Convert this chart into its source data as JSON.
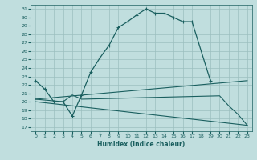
{
  "xlabel": "Humidex (Indice chaleur)",
  "bg_color": "#c0dede",
  "grid_color": "#9bbfbf",
  "line_color": "#1a5f5f",
  "xlim": [
    -0.5,
    23.5
  ],
  "ylim": [
    16.5,
    31.5
  ],
  "xticks": [
    0,
    1,
    2,
    3,
    4,
    5,
    6,
    7,
    8,
    9,
    10,
    11,
    12,
    13,
    14,
    15,
    16,
    17,
    18,
    19,
    20,
    21,
    22,
    23
  ],
  "yticks": [
    17,
    18,
    19,
    20,
    21,
    22,
    23,
    24,
    25,
    26,
    27,
    28,
    29,
    30,
    31
  ],
  "curve1_x": [
    0,
    1,
    2,
    3,
    4,
    5,
    6,
    7,
    8,
    9,
    10,
    11,
    12,
    13,
    14,
    15,
    16,
    17,
    19
  ],
  "curve1_y": [
    22.5,
    21.5,
    20.0,
    20.0,
    18.3,
    20.8,
    23.5,
    25.2,
    26.7,
    28.8,
    29.5,
    30.3,
    31.0,
    30.5,
    30.5,
    30.0,
    29.5,
    29.5,
    22.5
  ],
  "curve2_x": [
    0,
    23
  ],
  "curve2_y": [
    20.3,
    22.5
  ],
  "curve3_x": [
    0,
    23
  ],
  "curve3_y": [
    20.0,
    17.2
  ],
  "curve4_x": [
    0,
    3,
    4,
    5,
    20,
    21,
    22,
    23
  ],
  "curve4_y": [
    20.3,
    20.0,
    20.8,
    20.3,
    20.7,
    19.5,
    18.5,
    17.2
  ]
}
